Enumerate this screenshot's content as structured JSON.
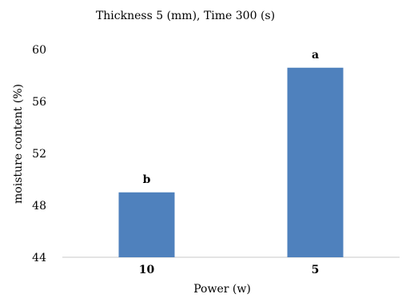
{
  "chart_data": {
    "type": "bar",
    "title": "Thickness 5 (mm), Time 300 (s)",
    "xlabel": "Power (w)",
    "ylabel": "moisture content  (%)",
    "categories": [
      "10",
      "5"
    ],
    "values": [
      49.0,
      58.6
    ],
    "data_labels": [
      "b",
      "a"
    ],
    "ylim": [
      44,
      60
    ],
    "yticks": [
      "44",
      "48",
      "52",
      "56",
      "60"
    ],
    "grid": false,
    "legend": "none",
    "bar_color": "#4f81bd"
  }
}
